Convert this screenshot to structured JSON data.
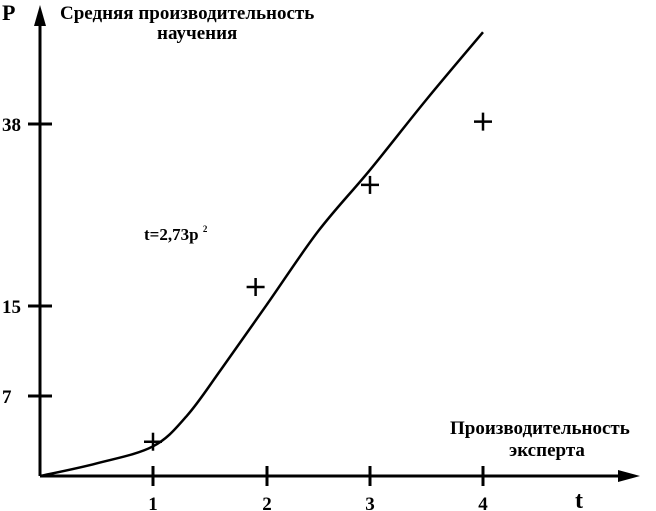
{
  "chart_data": {
    "type": "line",
    "ylabel": "P",
    "xlabel": "t",
    "ylabel_desc_lines": [
      "Средняя производительность",
      "научения"
    ],
    "xlabel_desc_lines": [
      "Производительность",
      "эксперта"
    ],
    "formula": {
      "main": "t=2,73p",
      "sup": "2"
    },
    "x_ticks": [
      "1",
      "2",
      "3",
      "4"
    ],
    "x_tick_values": [
      1,
      2,
      3,
      4
    ],
    "y_ticks": [
      "7",
      "15",
      "38"
    ],
    "y_tick_values": [
      7,
      15,
      38
    ],
    "curve": {
      "x": [
        0,
        0.5,
        1,
        1.3,
        1.6,
        2,
        2.5,
        3,
        3.5,
        4
      ],
      "y": [
        0,
        1.1,
        2.6,
        5.3,
        9.4,
        15.2,
        24.5,
        32.2,
        41.1,
        49.6
      ]
    },
    "points": [
      {
        "x": 1,
        "y": 3.0
      },
      {
        "x": 1.9,
        "y": 17.4
      },
      {
        "x": 3.0,
        "y": 30.3
      },
      {
        "x": 4.0,
        "y": 38.3
      }
    ]
  }
}
